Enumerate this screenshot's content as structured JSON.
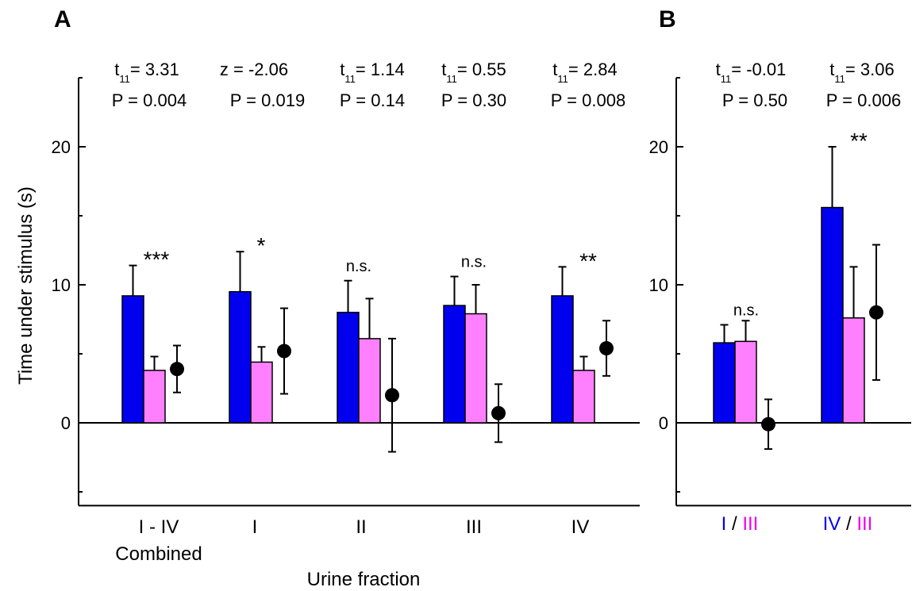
{
  "colors": {
    "blue": "#0000ee",
    "pink": "#ff80ff",
    "dot": "#000000"
  },
  "chart_data": [
    {
      "panel": "A",
      "type": "bar",
      "ylabel": "Time under stimulus (s)",
      "xlabel": "Urine fraction",
      "ylim": [
        -6,
        25
      ],
      "yticks": [
        0,
        10,
        20
      ],
      "categories": [
        "I - IV",
        "I",
        "II",
        "III",
        "IV"
      ],
      "category_sublabel": "Combined",
      "series": [
        {
          "color": "blue",
          "values": [
            9.2,
            9.5,
            8.0,
            8.5,
            9.2
          ],
          "err": [
            2.2,
            2.9,
            2.3,
            2.1,
            2.1
          ]
        },
        {
          "color": "pink",
          "values": [
            3.8,
            4.4,
            6.1,
            7.9,
            3.8
          ],
          "err": [
            1.0,
            1.1,
            2.9,
            2.1,
            1.0
          ]
        }
      ],
      "points": {
        "values": [
          3.9,
          5.2,
          2.0,
          0.7,
          5.4
        ],
        "err": [
          1.7,
          3.1,
          4.1,
          2.1,
          2.0
        ]
      },
      "stats": [
        {
          "stat": "t11= 3.31",
          "p": "P = 0.004",
          "sig": "***"
        },
        {
          "stat": "z = -2.06",
          "p": "P = 0.019",
          "sig": "*"
        },
        {
          "stat": "t11= 1.14",
          "p": "P = 0.14",
          "sig": "n.s."
        },
        {
          "stat": "t11= 0.55",
          "p": "P = 0.30",
          "sig": "n.s."
        },
        {
          "stat": "t11= 2.84",
          "p": "P = 0.008",
          "sig": "**"
        }
      ]
    },
    {
      "panel": "B",
      "type": "bar",
      "ylim": [
        -6,
        25
      ],
      "yticks": [
        0,
        10,
        20
      ],
      "categories": [
        {
          "a": "I",
          "sep": " / ",
          "b": "III"
        },
        {
          "a": "IV",
          "sep": " / ",
          "b": "III"
        }
      ],
      "series": [
        {
          "color": "blue",
          "values": [
            5.8,
            15.6
          ],
          "err": [
            1.3,
            4.4
          ]
        },
        {
          "color": "pink",
          "values": [
            5.9,
            7.6
          ],
          "err": [
            1.5,
            3.7
          ]
        }
      ],
      "points": {
        "values": [
          -0.1,
          8.0
        ],
        "err": [
          1.8,
          4.9
        ]
      },
      "stats": [
        {
          "stat": "t11= -0.01",
          "p": "P = 0.50",
          "sig": "n.s."
        },
        {
          "stat": "t11= 3.06",
          "p": "P = 0.006",
          "sig": "**"
        }
      ]
    }
  ]
}
